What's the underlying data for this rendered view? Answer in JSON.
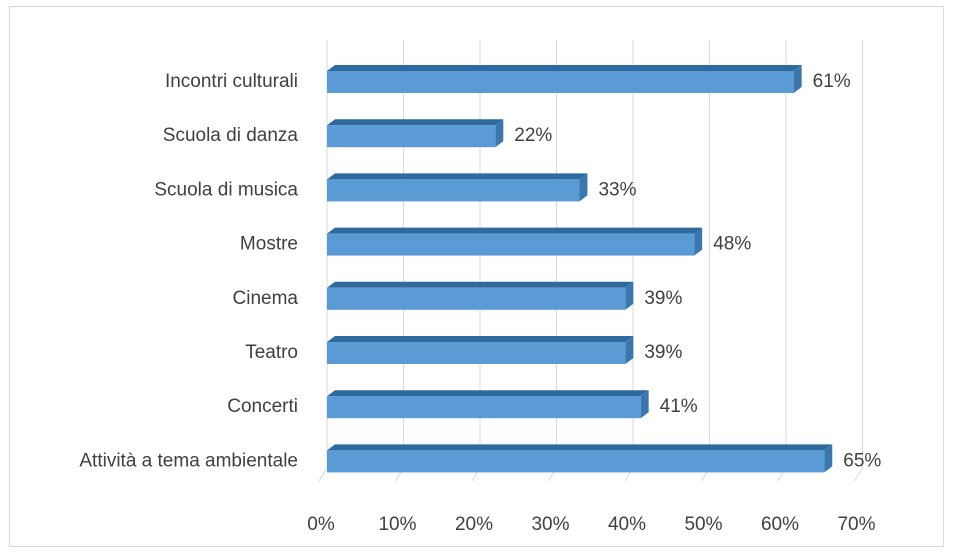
{
  "chart_data": {
    "type": "bar",
    "orientation": "horizontal",
    "style": "3d",
    "categories": [
      "Incontri culturali",
      "Scuola di danza",
      "Scuola di musica",
      "Mostre",
      "Cinema",
      "Teatro",
      "Concerti",
      "Attività a tema ambientale"
    ],
    "values": [
      61,
      22,
      33,
      48,
      39,
      39,
      41,
      65
    ],
    "value_labels": [
      "61%",
      "22%",
      "33%",
      "48%",
      "39%",
      "39%",
      "41%",
      "65%"
    ],
    "x_ticks": [
      "0%",
      "10%",
      "20%",
      "30%",
      "40%",
      "50%",
      "60%",
      "70%"
    ],
    "xlim": [
      0,
      70
    ],
    "grid": true,
    "bar_color": "#5b9bd5",
    "bar_top_color": "#2e6aa0",
    "bar_side_color": "#3a77ae",
    "grid_color": "#d9d9d9",
    "legend": "none"
  }
}
